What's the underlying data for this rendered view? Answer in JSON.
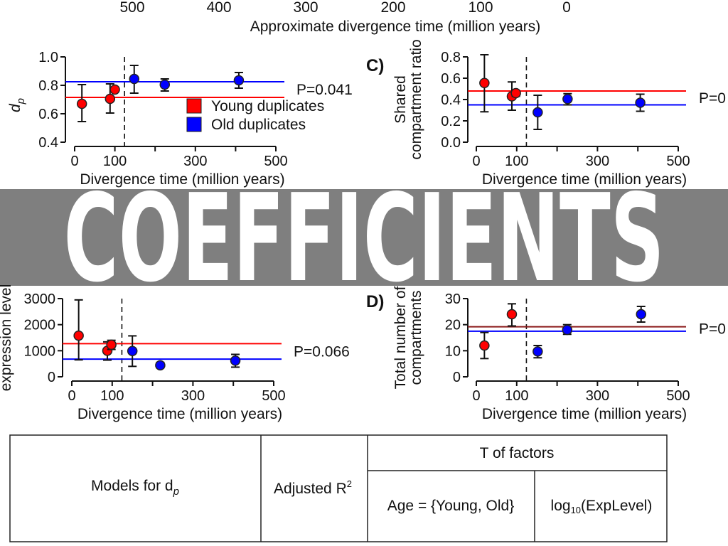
{
  "top_axis": {
    "ticks": [
      "500",
      "400",
      "300",
      "200",
      "100",
      "0"
    ],
    "label": "Approximate divergence time (million years)"
  },
  "banner": {
    "text": "COEFFICIENTS",
    "color": "#808080"
  },
  "colors": {
    "young": "#ff0000",
    "old": "#0000ff",
    "overlap_line": "#8b1a1a"
  },
  "legend": {
    "young": "Young duplicates",
    "old": "Old duplicates"
  },
  "chart_data": [
    {
      "id": "A",
      "panel_label": "",
      "type": "scatter",
      "title": "",
      "xlabel": "Divergence time (million years)",
      "ylabel": "d",
      "ylabel_sub": "p",
      "xlim": [
        0,
        500
      ],
      "ylim": [
        0.4,
        1.0
      ],
      "xticks": [
        0,
        100,
        200,
        300,
        400,
        500
      ],
      "xtick_labels": [
        "0",
        "100",
        "",
        "300",
        "",
        "500"
      ],
      "yticks": [
        0.4,
        0.6,
        0.8,
        1.0
      ],
      "ytick_labels": [
        "0.4",
        "0.6",
        "0.8",
        "1.0"
      ],
      "threshold": 124,
      "pvalue": "P=0.041",
      "means": {
        "young": 0.715,
        "old": 0.825
      },
      "series": [
        {
          "name": "Young duplicates",
          "points": [
            {
              "x": 18,
              "y": 0.67,
              "lo": 0.545,
              "hi": 0.805
            },
            {
              "x": 88,
              "y": 0.705,
              "lo": 0.605,
              "hi": 0.81
            },
            {
              "x": 100,
              "y": 0.77,
              "lo": 0.77,
              "hi": 0.77
            }
          ]
        },
        {
          "name": "Old duplicates",
          "points": [
            {
              "x": 148,
              "y": 0.845,
              "lo": 0.745,
              "hi": 0.94
            },
            {
              "x": 224,
              "y": 0.805,
              "lo": 0.76,
              "hi": 0.845
            },
            {
              "x": 408,
              "y": 0.835,
              "lo": 0.78,
              "hi": 0.89
            }
          ]
        }
      ],
      "legend_placement": "center-right"
    },
    {
      "id": "C",
      "panel_label": "C)",
      "type": "scatter",
      "title": "",
      "xlabel": "Divergence time (million years)",
      "ylabel": "Shared",
      "ylabel2": "compartment ratio",
      "xlim": [
        0,
        500
      ],
      "ylim": [
        0.0,
        0.8
      ],
      "xticks": [
        0,
        100,
        200,
        300,
        400,
        500
      ],
      "xtick_labels": [
        "0",
        "100",
        "",
        "300",
        "",
        "500"
      ],
      "yticks": [
        0.0,
        0.2,
        0.4,
        0.6,
        0.8
      ],
      "ytick_labels": [
        "0.0",
        "0.2",
        "0.4",
        "0.6",
        "0.8"
      ],
      "threshold": 124,
      "pvalue": "P=0",
      "means": {
        "young": 0.48,
        "old": 0.35
      },
      "series": [
        {
          "name": "Young duplicates",
          "points": [
            {
              "x": 20,
              "y": 0.555,
              "lo": 0.285,
              "hi": 0.82
            },
            {
              "x": 88,
              "y": 0.43,
              "lo": 0.3,
              "hi": 0.565
            },
            {
              "x": 98,
              "y": 0.46,
              "lo": 0.43,
              "hi": 0.48
            }
          ]
        },
        {
          "name": "Old duplicates",
          "points": [
            {
              "x": 152,
              "y": 0.28,
              "lo": 0.12,
              "hi": 0.44
            },
            {
              "x": 226,
              "y": 0.405,
              "lo": 0.35,
              "hi": 0.455
            },
            {
              "x": 406,
              "y": 0.37,
              "lo": 0.29,
              "hi": 0.45
            }
          ]
        }
      ]
    },
    {
      "id": "B",
      "panel_label": "",
      "type": "scatter",
      "title": "",
      "xlabel": "Divergence time (million years)",
      "ylabel": "expression level",
      "xlim": [
        0,
        500
      ],
      "ylim": [
        0,
        3000
      ],
      "xticks": [
        0,
        100,
        200,
        300,
        400,
        500
      ],
      "xtick_labels": [
        "0",
        "100",
        "",
        "300",
        "",
        "500"
      ],
      "yticks": [
        0,
        1000,
        2000,
        3000
      ],
      "ytick_labels": [
        "0",
        "1000",
        "2000",
        "3000"
      ],
      "threshold": 124,
      "pvalue": "P=0.066",
      "means": {
        "young": 1270,
        "old": 680
      },
      "series": [
        {
          "name": "Young duplicates",
          "points": [
            {
              "x": 17,
              "y": 1580,
              "lo": 650,
              "hi": 2950
            },
            {
              "x": 88,
              "y": 1000,
              "lo": 640,
              "hi": 1340
            },
            {
              "x": 98,
              "y": 1230,
              "lo": 1050,
              "hi": 1400
            }
          ]
        },
        {
          "name": "Old duplicates",
          "points": [
            {
              "x": 150,
              "y": 990,
              "lo": 400,
              "hi": 1570
            },
            {
              "x": 219,
              "y": 440,
              "lo": 350,
              "hi": 550
            },
            {
              "x": 405,
              "y": 620,
              "lo": 370,
              "hi": 860
            }
          ]
        }
      ]
    },
    {
      "id": "D",
      "panel_label": "D)",
      "type": "scatter",
      "title": "",
      "xlabel": "Divergence time (million years)",
      "ylabel": "Total number of",
      "ylabel2": "compartments",
      "xlim": [
        0,
        500
      ],
      "ylim": [
        0,
        30
      ],
      "xticks": [
        0,
        100,
        200,
        300,
        400,
        500
      ],
      "xtick_labels": [
        "0",
        "100",
        "",
        "300",
        "",
        "500"
      ],
      "yticks": [
        0,
        10,
        20,
        30
      ],
      "ytick_labels": [
        "0",
        "10",
        "20",
        "30"
      ],
      "threshold": 124,
      "pvalue": "P=0",
      "means": {
        "young": 19.2,
        "old": 17.5
      },
      "series": [
        {
          "name": "Young duplicates",
          "points": [
            {
              "x": 20,
              "y": 12,
              "lo": 7,
              "hi": 17
            },
            {
              "x": 88,
              "y": 24,
              "lo": 19.5,
              "hi": 28
            }
          ]
        },
        {
          "name": "Old duplicates",
          "points": [
            {
              "x": 152,
              "y": 9.7,
              "lo": 7.3,
              "hi": 12
            },
            {
              "x": 225,
              "y": 18,
              "lo": 16.3,
              "hi": 20
            },
            {
              "x": 408,
              "y": 24,
              "lo": 21,
              "hi": 27
            }
          ]
        }
      ]
    }
  ],
  "table": {
    "models_header": "Models for d",
    "models_header_sub": "p",
    "r2_header": "Adjusted R",
    "r2_sup": "2",
    "factors_header": "T of factors",
    "factor_age": "Age = {Young, Old}",
    "factor_expr_pre": "log",
    "factor_expr_sub": "10",
    "factor_expr_post": "(ExpLevel)"
  }
}
